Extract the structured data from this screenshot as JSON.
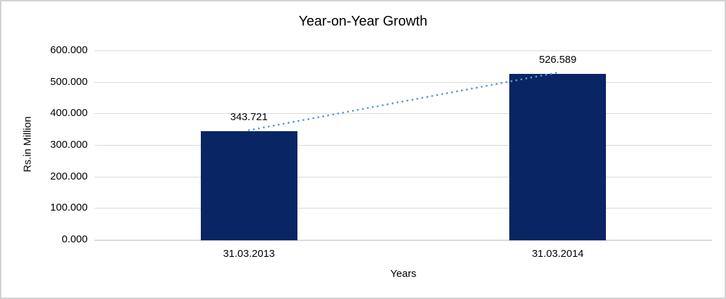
{
  "chart_data": {
    "type": "bar",
    "title": "Year-on-Year Growth",
    "xlabel": "Years",
    "ylabel": "Rs.in Million",
    "categories": [
      "31.03.2013",
      "31.03.2014"
    ],
    "values": [
      343.721,
      526.589
    ],
    "data_labels": [
      "343.721",
      "526.589"
    ],
    "ylim": [
      0,
      600
    ],
    "ytick_values": [
      0,
      100,
      200,
      300,
      400,
      500,
      600
    ],
    "ytick_labels": [
      "0.000",
      "100.000",
      "200.000",
      "300.000",
      "400.000",
      "500.000",
      "600.000"
    ],
    "grid": true,
    "legend": false,
    "trendline": {
      "style": "dotted",
      "from_category": 0,
      "to_category": 1
    },
    "colors": {
      "bar": "#0a2563",
      "trendline": "#5b9bd5",
      "gridline": "#d9d9d9",
      "axis_line": "#d9d9d9",
      "text": "#000000",
      "border": "#d2d2d2",
      "background": "#ffffff"
    }
  }
}
